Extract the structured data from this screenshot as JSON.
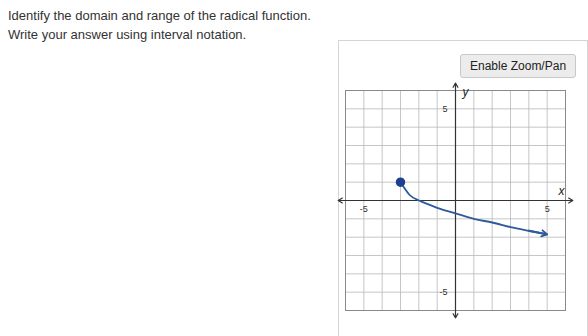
{
  "question": {
    "lines": [
      "Identify the domain and range of the radical function.",
      "Write your answer using interval notation."
    ]
  },
  "button": "Enable Zoom/Pan",
  "chart_data": {
    "type": "line",
    "x_label": "x",
    "y_label": "y",
    "x": [
      -3,
      -2.5,
      -2,
      -1,
      0,
      1,
      2,
      3,
      4,
      5
    ],
    "values": [
      1,
      0.3,
      0,
      -0.4,
      -0.7,
      -1,
      -1.2,
      -1.45,
      -1.65,
      -1.85
    ],
    "xlim": [
      -6,
      6
    ],
    "ylim": [
      -6,
      6
    ],
    "xticks": [
      -5,
      5
    ],
    "yticks": [
      -5,
      5
    ],
    "grid": true,
    "color": "#2e5a9c",
    "marker": "dot"
  }
}
